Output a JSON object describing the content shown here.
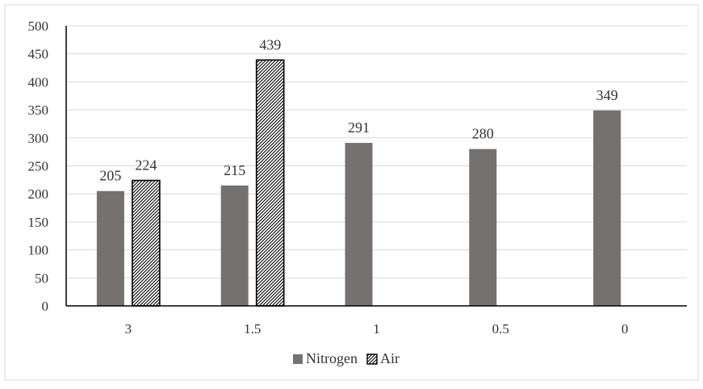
{
  "chart_data": {
    "type": "bar",
    "categories": [
      "3",
      "1.5",
      "1",
      "0.5",
      "0"
    ],
    "series": [
      {
        "name": "Nitrogen",
        "values": [
          205,
          215,
          291,
          280,
          349
        ],
        "color": "#767171",
        "pattern": "solid"
      },
      {
        "name": "Air",
        "values": [
          224,
          439,
          null,
          null,
          null
        ],
        "color": "#000000",
        "pattern": "diagonal-hatch"
      }
    ],
    "data_labels": [
      [
        "205",
        "215",
        "291",
        "280",
        "349"
      ],
      [
        "224",
        "439",
        "",
        "",
        ""
      ]
    ],
    "y_ticks": [
      "0",
      "50",
      "100",
      "150",
      "200",
      "250",
      "300",
      "350",
      "400",
      "450",
      "500"
    ],
    "ylim": [
      0,
      500
    ],
    "y_step": 50,
    "grid": true,
    "legend_position": "bottom",
    "title": "",
    "xlabel": "",
    "ylabel": ""
  }
}
